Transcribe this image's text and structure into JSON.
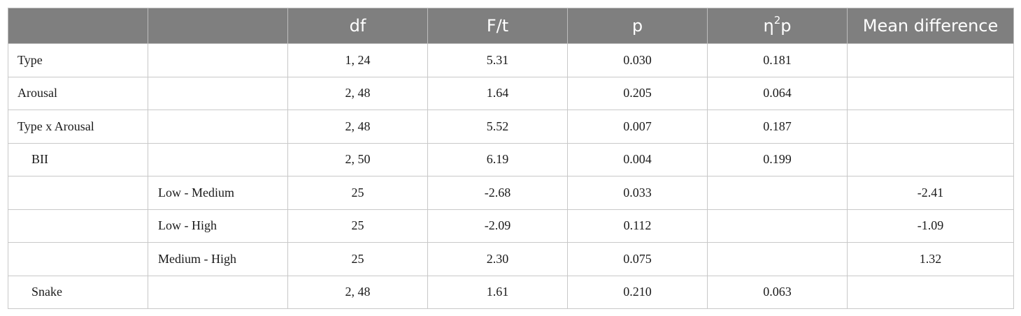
{
  "header": {
    "col_label": "",
    "col_sub": "",
    "col_df": "df",
    "col_ft": "F/t",
    "col_p": "p",
    "col_eta_base": "η",
    "col_eta_sup": "2",
    "col_eta_sub": "p",
    "col_mean_diff": "Mean difference"
  },
  "rows": [
    {
      "label": "Type",
      "sub": "",
      "df": "1, 24",
      "ft": "5.31",
      "p": "0.030",
      "eta": "0.181",
      "md": ""
    },
    {
      "label": "Arousal",
      "sub": "",
      "df": "2, 48",
      "ft": "1.64",
      "p": "0.205",
      "eta": "0.064",
      "md": ""
    },
    {
      "label": "Type x Arousal",
      "sub": "",
      "df": "2, 48",
      "ft": "5.52",
      "p": "0.007",
      "eta": "0.187",
      "md": ""
    },
    {
      "label": "BII",
      "sub": "",
      "df": "2, 50",
      "ft": "6.19",
      "p": "0.004",
      "eta": "0.199",
      "md": ""
    },
    {
      "label": "",
      "sub": "Low - Medium",
      "df": "25",
      "ft": "-2.68",
      "p": "0.033",
      "eta": "",
      "md": "-2.41"
    },
    {
      "label": "",
      "sub": "Low - High",
      "df": "25",
      "ft": "-2.09",
      "p": "0.112",
      "eta": "",
      "md": "-1.09"
    },
    {
      "label": "",
      "sub": "Medium - High",
      "df": "25",
      "ft": "2.30",
      "p": "0.075",
      "eta": "",
      "md": "1.32"
    },
    {
      "label": "Snake",
      "sub": "",
      "df": "2, 48",
      "ft": "1.61",
      "p": "0.210",
      "eta": "0.063",
      "md": ""
    }
  ]
}
